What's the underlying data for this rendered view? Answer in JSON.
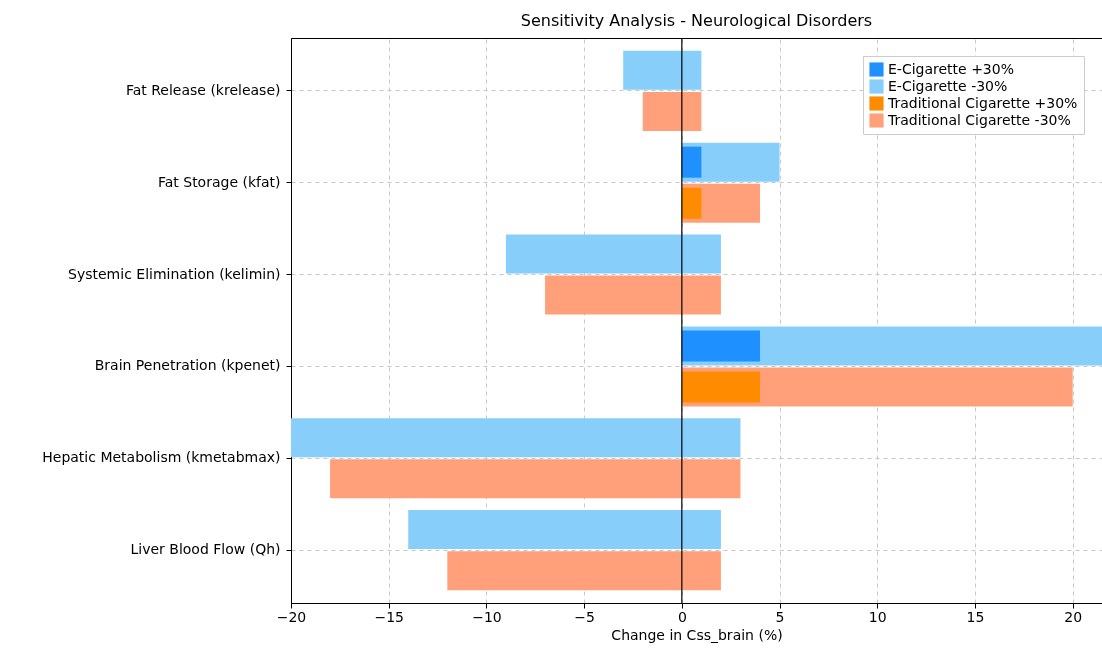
{
  "chart_data": {
    "type": "bar",
    "orientation": "horizontal",
    "title": "Sensitivity Analysis - Neurological Disorders",
    "xlabel": "Change in Css_brain (%)",
    "categories": [
      "Fat Release (krelease)",
      "Fat Storage (kfat)",
      "Systemic Elimination (kelimin)",
      "Brain Penetration (kpenet)",
      "Hepatic Metabolism (kmetabmax)",
      "Liver Blood Flow (Qh)"
    ],
    "series": [
      {
        "name": "E-Cigarette +30%",
        "color": "#1e90ff",
        "values": [
          null,
          1,
          null,
          4,
          null,
          null
        ]
      },
      {
        "name": "E-Cigarette -30%",
        "color": "#87cefa",
        "base": [
          -3,
          0,
          -9,
          0,
          -20,
          -14
        ],
        "values": [
          4,
          5,
          11,
          21.5,
          23,
          16
        ]
      },
      {
        "name": "Traditional Cigarette +30%",
        "color": "#ff8c00",
        "values": [
          null,
          1,
          null,
          4,
          null,
          null
        ]
      },
      {
        "name": "Traditional Cigarette -30%",
        "color": "#ffa07a",
        "base": [
          -2,
          0,
          -7,
          0,
          -18,
          -12
        ],
        "values": [
          3,
          4,
          9,
          20,
          21,
          14
        ]
      }
    ],
    "xlim": [
      -20,
      21.5
    ],
    "xticks": [
      -20,
      -15,
      -10,
      -5,
      0,
      5,
      10,
      15,
      20
    ],
    "ref_lines": [
      {
        "axis": "x",
        "value": 0,
        "color": "#000000"
      }
    ],
    "grid": true,
    "legend": "top right"
  }
}
